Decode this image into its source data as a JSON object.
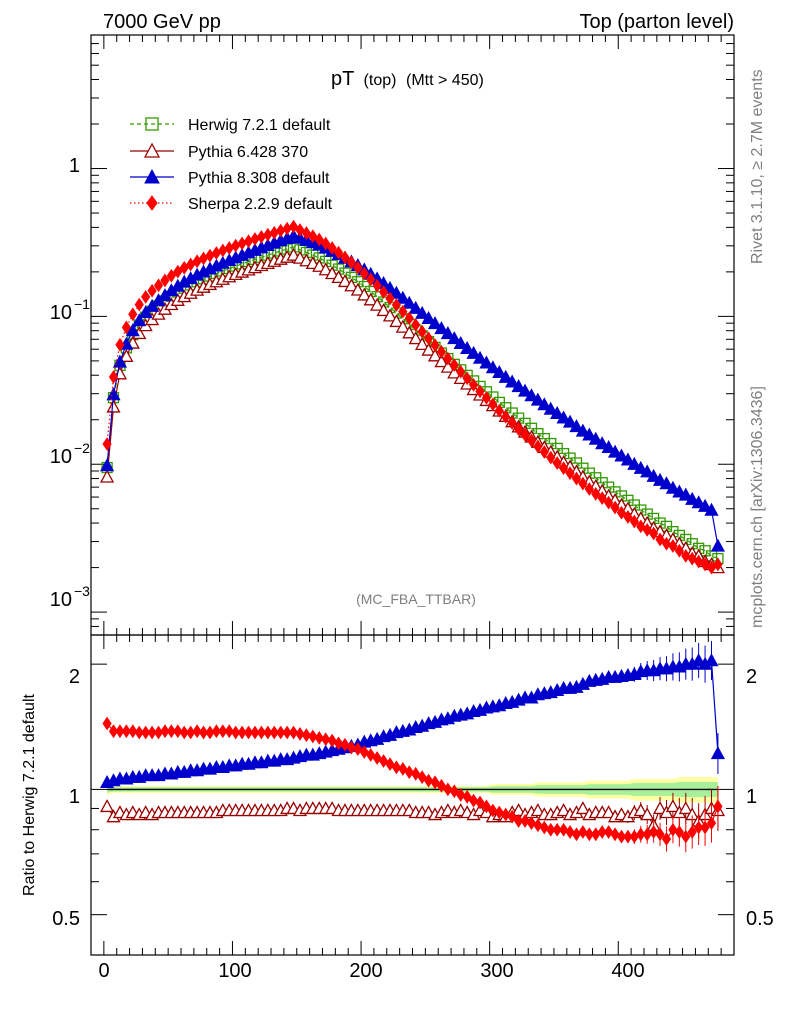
{
  "header": {
    "left_title": "7000 GeV pp",
    "right_title": "Top (parton level)"
  },
  "side_labels": {
    "rivet": "Rivet 3.1.10, ≥ 2.7M events",
    "mcplots": "mcplots.cern.ch [arXiv:1306.3436]"
  },
  "chart_data": [
    {
      "type": "line",
      "title": "pT",
      "title_parts": [
        "pT",
        "(top)",
        "(Mtt > 450)"
      ],
      "watermark": "(MC_FBA_TTBAR)",
      "xlabel": "",
      "ylabel": "",
      "xlim": [
        -10,
        490
      ],
      "ylim": [
        0.0007,
        8
      ],
      "yscale": "log",
      "y_ticklabels": [
        {
          "value": 1,
          "base": "1",
          "exp": ""
        },
        {
          "value": 0.1,
          "base": "10",
          "exp": "−1"
        },
        {
          "value": 0.01,
          "base": "10",
          "exp": "−2"
        },
        {
          "value": 0.001,
          "base": "10",
          "exp": "−3"
        }
      ],
      "legend_position": "top-left",
      "x": [
        2.5,
        7.5,
        12.5,
        17.5,
        22.5,
        27.5,
        32.5,
        37.5,
        42.5,
        47.5,
        52.5,
        57.5,
        62.5,
        67.5,
        72.5,
        77.5,
        82.5,
        87.5,
        92.5,
        97.5,
        102.5,
        107.5,
        112.5,
        117.5,
        122.5,
        127.5,
        132.5,
        137.5,
        142.5,
        147.5,
        152.5,
        157.5,
        162.5,
        167.5,
        172.5,
        177.5,
        182.5,
        187.5,
        192.5,
        197.5,
        202.5,
        207.5,
        212.5,
        217.5,
        222.5,
        227.5,
        232.5,
        237.5,
        242.5,
        247.5,
        252.5,
        257.5,
        262.5,
        267.5,
        272.5,
        277.5,
        282.5,
        287.5,
        292.5,
        297.5,
        302.5,
        307.5,
        312.5,
        317.5,
        322.5,
        327.5,
        332.5,
        337.5,
        342.5,
        347.5,
        352.5,
        357.5,
        362.5,
        367.5,
        372.5,
        377.5,
        382.5,
        387.5,
        392.5,
        397.5,
        402.5,
        407.5,
        412.5,
        417.5,
        422.5,
        427.5,
        432.5,
        437.5,
        442.5,
        447.5,
        452.5,
        457.5,
        462.5,
        467.5,
        472.5,
        477.5
      ],
      "series": [
        {
          "name": "Herwig 7.2.1 default",
          "color": "#339900",
          "marker": "open-square",
          "line": "dashed",
          "values": [
            0.0095,
            0.0282,
            0.0466,
            0.0612,
            0.0752,
            0.0874,
            0.0987,
            0.1085,
            0.118,
            0.1273,
            0.1368,
            0.146,
            0.155,
            0.1632,
            0.1714,
            0.1794,
            0.1873,
            0.1951,
            0.2029,
            0.2108,
            0.2188,
            0.2267,
            0.2346,
            0.2427,
            0.251,
            0.2594,
            0.268,
            0.2768,
            0.2857,
            0.2949,
            0.282,
            0.2707,
            0.2598,
            0.2484,
            0.2354,
            0.2219,
            0.2089,
            0.1961,
            0.1836,
            0.1717,
            0.1592,
            0.1474,
            0.1358,
            0.125,
            0.1148,
            0.1053,
            0.0964,
            0.0882,
            0.0807,
            0.0738,
            0.0675,
            0.0617,
            0.0565,
            0.0518,
            0.0474,
            0.0435,
            0.0399,
            0.0366,
            0.0336,
            0.0309,
            0.0285,
            0.0262,
            0.0241,
            0.0222,
            0.0205,
            0.0189,
            0.0175,
            0.0161,
            0.0149,
            0.0138,
            0.0128,
            0.0118,
            0.011,
            0.0102,
            0.0094,
            0.0087,
            0.0081,
            0.0075,
            0.007,
            0.0065,
            0.0061,
            0.0057,
            0.0053,
            0.0049,
            0.0046,
            0.0043,
            0.004,
            0.0038,
            0.0035,
            0.0033,
            0.0031,
            0.0029,
            0.0027,
            0.0026,
            0.0024,
            0.0023
          ]
        },
        {
          "name": "Pythia 6.428 370",
          "color": "#990000",
          "marker": "open-triangle",
          "line": "solid",
          "values": [
            0.0082,
            0.0244,
            0.0409,
            0.0537,
            0.066,
            0.0767,
            0.0866,
            0.0952,
            0.1036,
            0.1119,
            0.1203,
            0.1284,
            0.1362,
            0.1434,
            0.1506,
            0.1576,
            0.1645,
            0.1715,
            0.1784,
            0.1854,
            0.1924,
            0.1994,
            0.2064,
            0.2136,
            0.221,
            0.2284,
            0.236,
            0.2436,
            0.2514,
            0.2595,
            0.2479,
            0.2379,
            0.2283,
            0.2183,
            0.2068,
            0.1949,
            0.1835,
            0.1723,
            0.1612,
            0.1508,
            0.1397,
            0.1294,
            0.1192,
            0.1097,
            0.1008,
            0.0924,
            0.0846,
            0.0774,
            0.0708,
            0.0647,
            0.0592,
            0.0541,
            0.0495,
            0.0454,
            0.0415,
            0.0381,
            0.0349,
            0.032,
            0.0294,
            0.027,
            0.0249,
            0.0229,
            0.0211,
            0.0194,
            0.0179,
            0.0165,
            0.0153,
            0.0141,
            0.013,
            0.0121,
            0.0112,
            0.0103,
            0.0096,
            0.0089,
            0.0082,
            0.0076,
            0.0071,
            0.0066,
            0.0061,
            0.0057,
            0.0053,
            0.005,
            0.0046,
            0.0043,
            0.004,
            0.0037,
            0.0035,
            0.0033,
            0.0031,
            0.0029,
            0.0027,
            0.0025,
            0.0024,
            0.0022,
            0.0021,
            0.002
          ]
        },
        {
          "name": "Pythia 8.308 default",
          "color": "#0000cc",
          "marker": "filled-triangle",
          "line": "solid",
          "values": [
            0.0098,
            0.0296,
            0.0492,
            0.065,
            0.0802,
            0.0937,
            0.1062,
            0.1172,
            0.1279,
            0.1385,
            0.1495,
            0.1603,
            0.1708,
            0.1806,
            0.1904,
            0.2001,
            0.2098,
            0.2195,
            0.2292,
            0.2391,
            0.2492,
            0.2594,
            0.2697,
            0.2803,
            0.2912,
            0.3023,
            0.3137,
            0.3253,
            0.3372,
            0.3495,
            0.3385,
            0.3268,
            0.3156,
            0.304,
            0.2904,
            0.276,
            0.262,
            0.248,
            0.2342,
            0.2209,
            0.2067,
            0.1931,
            0.1797,
            0.1671,
            0.155,
            0.1437,
            0.1329,
            0.1229,
            0.1136,
            0.105,
            0.097,
            0.0896,
            0.0829,
            0.0767,
            0.0709,
            0.0657,
            0.0608,
            0.0563,
            0.0522,
            0.0485,
            0.045,
            0.0418,
            0.0388,
            0.0361,
            0.0336,
            0.0313,
            0.0291,
            0.0272,
            0.0253,
            0.0236,
            0.0221,
            0.0206,
            0.0193,
            0.018,
            0.0168,
            0.0158,
            0.0148,
            0.0138,
            0.013,
            0.0121,
            0.0114,
            0.0107,
            0.01,
            0.0094,
            0.0089,
            0.0083,
            0.0078,
            0.0074,
            0.0069,
            0.0065,
            0.0062,
            0.0058,
            0.0055,
            0.0052,
            0.0049,
            0.0028
          ]
        },
        {
          "name": "Sherpa 2.2.9 default",
          "color": "#ff0000",
          "marker": "filled-diamond",
          "line": "dotted",
          "values": [
            0.0137,
            0.0389,
            0.0643,
            0.0842,
            0.1034,
            0.1201,
            0.1355,
            0.149,
            0.162,
            0.1751,
            0.1882,
            0.2008,
            0.2131,
            0.2244,
            0.2357,
            0.2466,
            0.2574,
            0.2683,
            0.2791,
            0.2899,
            0.3008,
            0.3116,
            0.3225,
            0.3337,
            0.345,
            0.3563,
            0.368,
            0.38,
            0.3921,
            0.4045,
            0.384,
            0.3659,
            0.3486,
            0.3308,
            0.3107,
            0.2899,
            0.2698,
            0.2506,
            0.2316,
            0.2138,
            0.1951,
            0.1778,
            0.1613,
            0.1462,
            0.1322,
            0.1194,
            0.1077,
            0.0971,
            0.0876,
            0.0788,
            0.071,
            0.0639,
            0.0576,
            0.0519,
            0.0468,
            0.0422,
            0.0381,
            0.0344,
            0.0311,
            0.0281,
            0.0254,
            0.023,
            0.0209,
            0.019,
            0.0173,
            0.0158,
            0.0145,
            0.0132,
            0.0121,
            0.0111,
            0.0102,
            0.0094,
            0.0087,
            0.008,
            0.0074,
            0.0068,
            0.0063,
            0.0059,
            0.0055,
            0.0051,
            0.0047,
            0.0044,
            0.0041,
            0.0038,
            0.0036,
            0.0034,
            0.0031,
            0.0029,
            0.0028,
            0.0026,
            0.0024,
            0.0023,
            0.0022,
            0.0021,
            0.002,
            0.0021
          ]
        }
      ]
    },
    {
      "type": "line",
      "title": "",
      "xlabel": "",
      "ylabel": "Ratio to Herwig 7.2.1 default",
      "xlim": [
        -10,
        490
      ],
      "ylim": [
        0.4,
        2.35
      ],
      "yscale": "log",
      "x_ticklabels": [
        "0",
        "100",
        "200",
        "300",
        "400"
      ],
      "y_ticklabels": [
        "0.5",
        "1",
        "2"
      ],
      "reference": 1,
      "band_lo": [
        0.97,
        0.98,
        0.98,
        0.98,
        0.98,
        0.98,
        0.98,
        0.98,
        0.98,
        0.98,
        0.98,
        0.98,
        0.98,
        0.98,
        0.98,
        0.98,
        0.98,
        0.98,
        0.98,
        0.98,
        0.98,
        0.98,
        0.98,
        0.98,
        0.98,
        0.98,
        0.98,
        0.98,
        0.98,
        0.98,
        0.98,
        0.98,
        0.98,
        0.98,
        0.98,
        0.98,
        0.98,
        0.98,
        0.98,
        0.98,
        0.98,
        0.98,
        0.98,
        0.98,
        0.98,
        0.98,
        0.98,
        0.98,
        0.98,
        0.98,
        0.98,
        0.98,
        0.98,
        0.98,
        0.98,
        0.98,
        0.98,
        0.98,
        0.98,
        0.98,
        0.97,
        0.97,
        0.97,
        0.97,
        0.97,
        0.97,
        0.97,
        0.96,
        0.96,
        0.96,
        0.96,
        0.96,
        0.96,
        0.96,
        0.96,
        0.95,
        0.95,
        0.95,
        0.95,
        0.95,
        0.95,
        0.95,
        0.94,
        0.94,
        0.94,
        0.94,
        0.94,
        0.94,
        0.94,
        0.93,
        0.93,
        0.93,
        0.93,
        0.93,
        0.93,
        0.93
      ],
      "band_hi": [
        1.03,
        1.02,
        1.02,
        1.02,
        1.02,
        1.02,
        1.02,
        1.02,
        1.02,
        1.02,
        1.02,
        1.02,
        1.02,
        1.02,
        1.02,
        1.02,
        1.02,
        1.02,
        1.02,
        1.02,
        1.02,
        1.02,
        1.02,
        1.02,
        1.02,
        1.02,
        1.02,
        1.02,
        1.02,
        1.02,
        1.02,
        1.02,
        1.02,
        1.02,
        1.02,
        1.02,
        1.02,
        1.02,
        1.02,
        1.02,
        1.02,
        1.02,
        1.02,
        1.02,
        1.02,
        1.02,
        1.02,
        1.02,
        1.02,
        1.02,
        1.02,
        1.02,
        1.02,
        1.02,
        1.02,
        1.02,
        1.02,
        1.02,
        1.02,
        1.02,
        1.03,
        1.03,
        1.03,
        1.03,
        1.03,
        1.03,
        1.03,
        1.04,
        1.04,
        1.04,
        1.04,
        1.04,
        1.04,
        1.04,
        1.04,
        1.05,
        1.05,
        1.05,
        1.05,
        1.05,
        1.05,
        1.05,
        1.06,
        1.06,
        1.06,
        1.06,
        1.06,
        1.06,
        1.06,
        1.07,
        1.07,
        1.07,
        1.07,
        1.07,
        1.07,
        1.07
      ],
      "series": [
        {
          "name": "Pythia 6.428 370",
          "color": "#990000",
          "marker": "open-triangle",
          "values": [
            0.91,
            0.86,
            0.88,
            0.87,
            0.88,
            0.87,
            0.88,
            0.87,
            0.88,
            0.88,
            0.88,
            0.88,
            0.88,
            0.88,
            0.88,
            0.88,
            0.88,
            0.88,
            0.89,
            0.89,
            0.89,
            0.89,
            0.89,
            0.89,
            0.89,
            0.89,
            0.89,
            0.89,
            0.9,
            0.9,
            0.89,
            0.9,
            0.9,
            0.9,
            0.9,
            0.9,
            0.89,
            0.89,
            0.89,
            0.89,
            0.89,
            0.89,
            0.89,
            0.89,
            0.89,
            0.89,
            0.89,
            0.89,
            0.88,
            0.88,
            0.88,
            0.87,
            0.88,
            0.89,
            0.88,
            0.89,
            0.88,
            0.87,
            0.89,
            0.88,
            0.86,
            0.87,
            0.86,
            0.88,
            0.89,
            0.87,
            0.88,
            0.89,
            0.87,
            0.87,
            0.88,
            0.89,
            0.87,
            0.88,
            0.9,
            0.87,
            0.88,
            0.88,
            0.88,
            0.86,
            0.87,
            0.86,
            0.88,
            0.89,
            0.87,
            0.82,
            0.9,
            0.88,
            0.91,
            0.88,
            0.9,
            0.87,
            0.84,
            0.87,
            0.9,
            0.89
          ]
        },
        {
          "name": "Pythia 8.308 default",
          "color": "#0000cc",
          "marker": "filled-triangle",
          "values": [
            1.04,
            1.05,
            1.06,
            1.06,
            1.07,
            1.07,
            1.08,
            1.08,
            1.08,
            1.09,
            1.09,
            1.1,
            1.1,
            1.11,
            1.11,
            1.12,
            1.12,
            1.13,
            1.13,
            1.14,
            1.14,
            1.15,
            1.15,
            1.16,
            1.16,
            1.17,
            1.17,
            1.18,
            1.18,
            1.19,
            1.2,
            1.21,
            1.21,
            1.22,
            1.23,
            1.24,
            1.25,
            1.26,
            1.27,
            1.28,
            1.3,
            1.31,
            1.32,
            1.34,
            1.35,
            1.37,
            1.38,
            1.39,
            1.41,
            1.42,
            1.44,
            1.45,
            1.47,
            1.48,
            1.5,
            1.51,
            1.52,
            1.54,
            1.55,
            1.57,
            1.58,
            1.59,
            1.61,
            1.62,
            1.64,
            1.66,
            1.66,
            1.69,
            1.7,
            1.71,
            1.73,
            1.75,
            1.75,
            1.76,
            1.79,
            1.82,
            1.83,
            1.84,
            1.86,
            1.86,
            1.87,
            1.88,
            1.89,
            1.92,
            1.93,
            1.93,
            1.95,
            1.95,
            1.97,
            1.97,
            2.0,
            2.0,
            2.04,
            2.0,
            2.04,
            1.22
          ]
        },
        {
          "name": "Sherpa 2.2.9 default",
          "color": "#ff0000",
          "marker": "filled-diamond",
          "values": [
            1.44,
            1.38,
            1.38,
            1.38,
            1.38,
            1.37,
            1.37,
            1.37,
            1.37,
            1.38,
            1.38,
            1.38,
            1.37,
            1.37,
            1.38,
            1.37,
            1.37,
            1.38,
            1.38,
            1.38,
            1.37,
            1.37,
            1.37,
            1.37,
            1.37,
            1.37,
            1.37,
            1.37,
            1.37,
            1.37,
            1.36,
            1.35,
            1.34,
            1.33,
            1.32,
            1.31,
            1.29,
            1.28,
            1.26,
            1.25,
            1.23,
            1.21,
            1.19,
            1.17,
            1.15,
            1.13,
            1.12,
            1.1,
            1.09,
            1.07,
            1.05,
            1.04,
            1.02,
            1.0,
            0.99,
            0.97,
            0.96,
            0.94,
            0.93,
            0.91,
            0.89,
            0.88,
            0.87,
            0.86,
            0.84,
            0.84,
            0.83,
            0.82,
            0.81,
            0.8,
            0.8,
            0.8,
            0.79,
            0.78,
            0.79,
            0.78,
            0.78,
            0.79,
            0.79,
            0.78,
            0.77,
            0.77,
            0.77,
            0.78,
            0.78,
            0.79,
            0.78,
            0.76,
            0.8,
            0.79,
            0.77,
            0.79,
            0.81,
            0.81,
            0.83,
            0.91
          ]
        }
      ]
    }
  ]
}
